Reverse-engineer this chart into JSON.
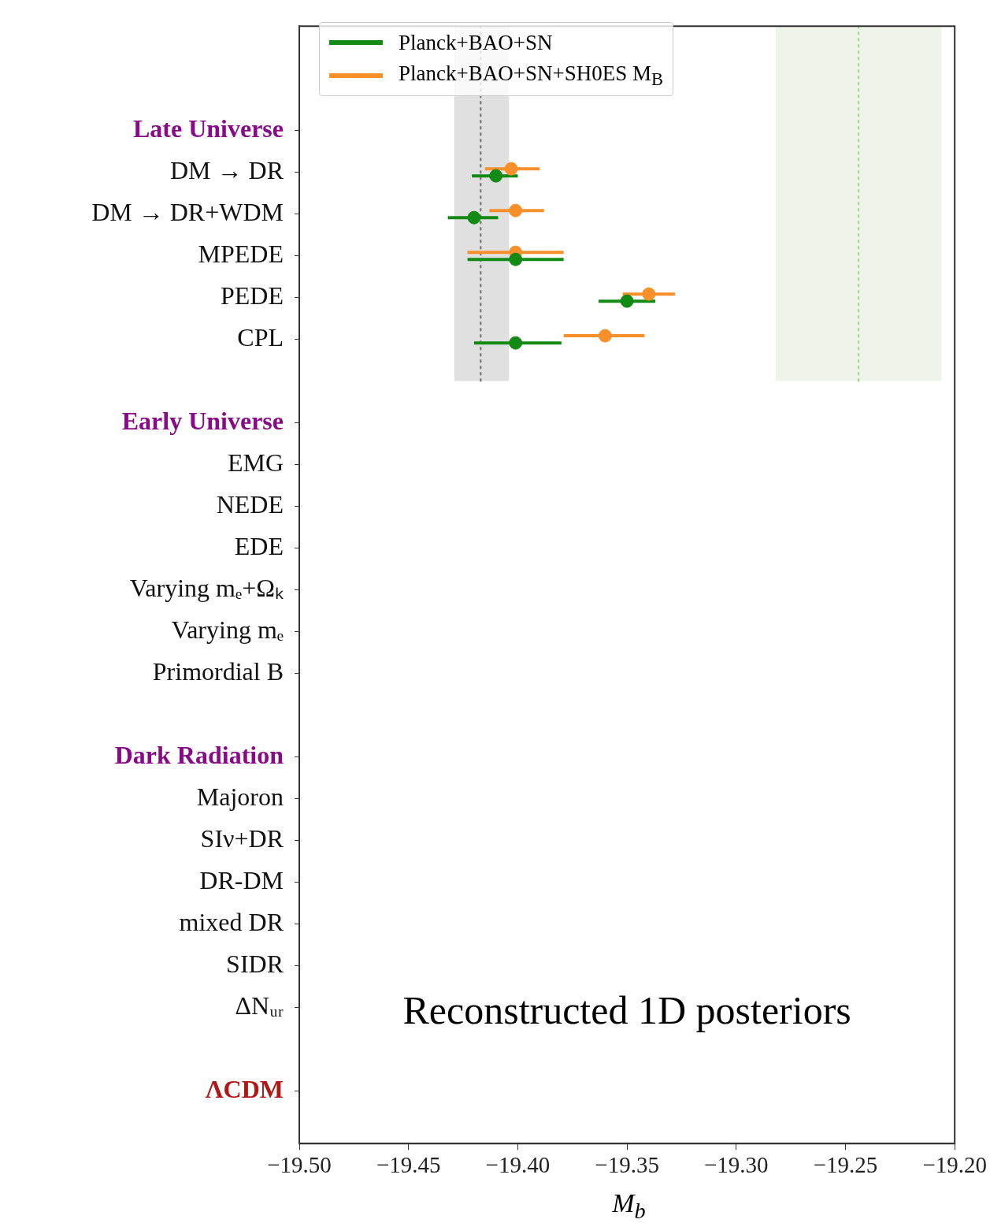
{
  "chart_data": {
    "type": "scatter",
    "orientation": "horizontal",
    "categories": [
      "Late Universe",
      "DM → DR",
      "DM → DR+WDM",
      "MPEDE",
      "PEDE",
      "CPL",
      null,
      "Early Universe",
      "EMG",
      "NEDE",
      "EDE",
      "Varying mₑ+Ωₖ",
      "Varying mₑ",
      "Primordial B",
      null,
      "Dark Radiation",
      "Majoron",
      "SIν+DR",
      "DR-DM",
      "mixed DR",
      "SIDR",
      "ΔNᵤᵣ",
      null,
      "ΛCDM"
    ],
    "series": [
      {
        "name": "Planck+BAO+SN",
        "color": "#138a13",
        "values": [
          null,
          -19.41,
          -19.42,
          -19.401,
          -19.35,
          -19.401,
          null,
          null,
          null,
          null,
          null,
          null,
          null,
          null,
          null,
          null,
          null,
          null,
          null,
          null,
          null,
          null,
          null,
          null
        ],
        "errors": [
          null,
          [
            -19.421,
            -19.4
          ],
          [
            -19.432,
            -19.409
          ],
          [
            -19.423,
            -19.379
          ],
          [
            -19.363,
            -19.337
          ],
          [
            -19.42,
            -19.38
          ],
          null,
          null,
          null,
          null,
          null,
          null,
          null,
          null,
          null,
          null,
          null,
          null,
          null,
          null,
          null,
          null,
          null,
          null
        ]
      },
      {
        "name": "Planck+BAO+SN+SH0ES M$_{B}$",
        "color": "#f7902a",
        "values": [
          null,
          -19.403,
          -19.401,
          -19.401,
          -19.34,
          -19.36,
          null,
          null,
          null,
          null,
          null,
          null,
          null,
          null,
          null,
          null,
          null,
          null,
          null,
          null,
          null,
          null,
          null,
          null
        ],
        "errors": [
          null,
          [
            -19.415,
            -19.39
          ],
          [
            -19.413,
            -19.388
          ],
          [
            -19.423,
            -19.379
          ],
          [
            -19.352,
            -19.328
          ],
          [
            -19.379,
            -19.342
          ],
          null,
          null,
          null,
          null,
          null,
          null,
          null,
          null,
          null,
          null,
          null,
          null,
          null,
          null,
          null,
          null,
          null,
          null
        ]
      }
    ],
    "xlim": [
      -19.5,
      -19.2
    ],
    "xticks": [
      {
        "value": -19.5,
        "label": "−19.50"
      },
      {
        "value": -19.45,
        "label": "−19.45"
      },
      {
        "value": -19.4,
        "label": "−19.40"
      },
      {
        "value": -19.35,
        "label": "−19.35"
      },
      {
        "value": -19.3,
        "label": "−19.30"
      },
      {
        "value": -19.25,
        "label": "−19.25"
      },
      {
        "value": -19.2,
        "label": "−19.20"
      }
    ],
    "xlabel": "M$_{b}$",
    "bands": [
      {
        "axis": "x",
        "from": -19.429,
        "to": -19.404,
        "color": "#e0e0e0"
      },
      {
        "axis": "x",
        "from": -19.282,
        "to": -19.206,
        "color": "#eef4e9"
      }
    ],
    "ref_lines": [
      {
        "axis": "x",
        "value": -19.417,
        "color": "#808080",
        "line_style": "dotted"
      },
      {
        "axis": "x",
        "value": -19.244,
        "color": "#a8d890",
        "line_style": "dotted"
      }
    ],
    "annotations": [
      "Reconstructed 1D posteriors"
    ],
    "legend": "top left",
    "marker": "circle",
    "grid": false
  }
}
